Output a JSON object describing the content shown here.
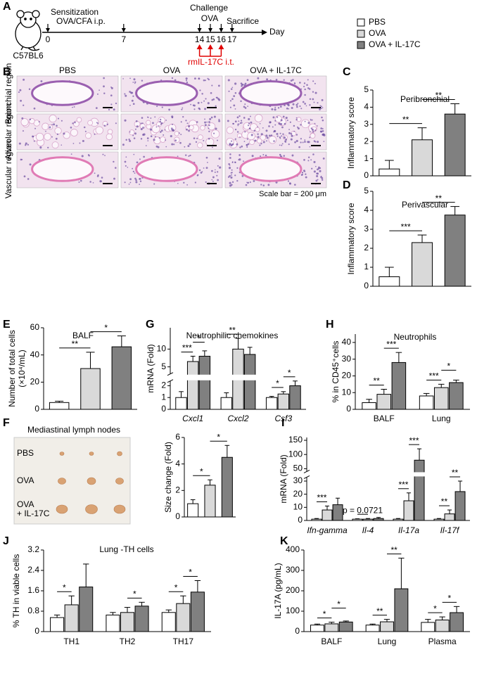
{
  "panel_A": {
    "label": "A",
    "strain": "C57BL6",
    "sensitization": "Sensitization",
    "sensitization_route": "OVA/CFA i.p.",
    "challenge": "Challenge",
    "challenge_agent": "OVA",
    "sacrifice": "Sacrifice",
    "axis_label": "Day",
    "days": [
      0,
      7,
      14,
      15,
      16,
      17
    ],
    "treatment": "rmIL-17C i.t."
  },
  "legend": {
    "items": [
      {
        "name": "PBS",
        "color": "#ffffff"
      },
      {
        "name": "OVA",
        "color": "#d9d9d9"
      },
      {
        "name": "OVA + IL-17C",
        "color": "#808080"
      }
    ]
  },
  "panel_B": {
    "label": "B",
    "columns": [
      "PBS",
      "OVA",
      "OVA + IL-17C"
    ],
    "rows": [
      "Bronchial region",
      "Alveolar region",
      "Vascular region"
    ],
    "scale_note": "Scale bar = 200 μm"
  },
  "panel_F_photo": {
    "label": "F",
    "title": "Mediastinal lymph nodes",
    "rows": [
      [
        "PBS"
      ],
      [
        "OVA"
      ],
      [
        "OVA",
        "+ IL-17C"
      ]
    ]
  },
  "chart_data": [
    {
      "panel": "C",
      "type": "bar",
      "title": "Peribronchial",
      "ylabel": "Inflammatory score",
      "values": [
        0.4,
        2.1,
        3.6
      ],
      "errors": [
        0.5,
        0.7,
        0.6
      ],
      "ylim": [
        0,
        5
      ],
      "yticks": [
        0,
        1,
        2,
        3,
        4,
        5
      ],
      "comparisons": [
        {
          "pair": [
            0,
            1
          ],
          "label": "**"
        },
        {
          "pair": [
            1,
            2
          ],
          "label": "**"
        }
      ]
    },
    {
      "panel": "D",
      "type": "bar",
      "title": "Perivascular",
      "ylabel": "Inflammatory score",
      "values": [
        0.5,
        2.3,
        3.75
      ],
      "errors": [
        0.5,
        0.4,
        0.45
      ],
      "ylim": [
        0,
        5
      ],
      "yticks": [
        0,
        1,
        2,
        3,
        4,
        5
      ],
      "comparisons": [
        {
          "pair": [
            0,
            1
          ],
          "label": "***"
        },
        {
          "pair": [
            1,
            2
          ],
          "label": "**"
        }
      ]
    },
    {
      "panel": "E",
      "type": "bar",
      "title": "BALF",
      "ylabel": [
        "Number of total cells",
        "(×10⁴/mL)"
      ],
      "values": [
        5,
        30,
        46
      ],
      "errors": [
        1,
        12,
        8
      ],
      "ylim": [
        0,
        60
      ],
      "yticks": [
        0,
        20,
        40,
        60
      ],
      "comparisons": [
        {
          "pair": [
            0,
            1
          ],
          "label": "**"
        },
        {
          "pair": [
            1,
            2
          ],
          "label": "*"
        }
      ]
    },
    {
      "type": "bar",
      "ylabel": "Size change (Fold)",
      "values": [
        1.0,
        2.4,
        4.5
      ],
      "errors": [
        0.3,
        0.4,
        0.9
      ],
      "ylim": [
        0,
        6
      ],
      "yticks": [
        0,
        2,
        4,
        6
      ],
      "comparisons": [
        {
          "pair": [
            0,
            1
          ],
          "label": "*"
        },
        {
          "pair": [
            1,
            2
          ],
          "label": "*"
        }
      ]
    },
    {
      "panel": "G",
      "type": "grouped_bar",
      "title": "Neutrophilic chemokines",
      "ylabel": "mRNA  (Fold)",
      "categories": [
        "Cxcl1",
        "Cxcl2",
        "Csf3"
      ],
      "category_style": "italic",
      "series": [
        {
          "values": [
            1.0,
            1.0,
            1.0
          ],
          "errors": [
            0.5,
            0.4,
            0.1
          ]
        },
        {
          "values": [
            6.5,
            10.0,
            1.3
          ],
          "errors": [
            1.5,
            3,
            0.2
          ]
        },
        {
          "values": [
            8.0,
            8.5,
            2.0
          ],
          "errors": [
            1.5,
            2,
            0.4
          ]
        }
      ],
      "ylim": [
        0,
        16
      ],
      "ybreak": [
        2.4,
        3
      ],
      "yticks": [
        0,
        1,
        2,
        5,
        10
      ],
      "comparisons": [
        {
          "category": 0,
          "pair": [
            0,
            1
          ],
          "label": "***"
        },
        {
          "category": 0,
          "pair": [
            1,
            2
          ],
          "label": "*"
        },
        {
          "category": 1,
          "pair": [
            0,
            1
          ],
          "label": "**"
        },
        {
          "category": 2,
          "pair": [
            0,
            1
          ],
          "label": "*"
        },
        {
          "category": 2,
          "pair": [
            1,
            2
          ],
          "label": "*"
        }
      ]
    },
    {
      "panel": "H",
      "type": "grouped_bar",
      "title": "Neutrophils",
      "ylabel": "% in CD45⁺cells",
      "categories": [
        "BALF",
        "Lung"
      ],
      "series": [
        {
          "values": [
            4,
            8
          ],
          "errors": [
            2,
            1.5
          ]
        },
        {
          "values": [
            9,
            13
          ],
          "errors": [
            3,
            2
          ]
        },
        {
          "values": [
            28,
            16
          ],
          "errors": [
            6,
            1.5
          ]
        }
      ],
      "ylim": [
        0,
        45
      ],
      "yticks": [
        0,
        10,
        20,
        30,
        40
      ],
      "comparisons": [
        {
          "category": 0,
          "pair": [
            0,
            1
          ],
          "label": "**"
        },
        {
          "category": 0,
          "pair": [
            1,
            2
          ],
          "label": "***"
        },
        {
          "category": 1,
          "pair": [
            0,
            1
          ],
          "label": "***"
        },
        {
          "category": 1,
          "pair": [
            1,
            2
          ],
          "label": "*"
        }
      ]
    },
    {
      "panel": "I",
      "type": "grouped_bar",
      "ylabel": "mRNA  (Fold)",
      "categories": [
        "Ifn-gamma",
        "Il-4",
        "Il-17a",
        "Il-17f"
      ],
      "category_style": "italic",
      "series": [
        {
          "values": [
            1,
            1,
            1,
            1
          ],
          "errors": [
            0.5,
            0.3,
            0.5,
            0.5
          ]
        },
        {
          "values": [
            8,
            1,
            15,
            5
          ],
          "errors": [
            3,
            0.5,
            6,
            3
          ]
        },
        {
          "values": [
            12,
            1.5,
            80,
            22
          ],
          "errors": [
            5,
            0.8,
            40,
            8
          ]
        }
      ],
      "ylim": [
        0,
        160
      ],
      "ybreak": [
        33,
        40
      ],
      "yticks": [
        0,
        10,
        20,
        30,
        50,
        100,
        150
      ],
      "comparisons": [
        {
          "category": 0,
          "pair": [
            0,
            1
          ],
          "label": "***"
        },
        {
          "category": 1,
          "pair": [
            0,
            1
          ],
          "label": "p = 0.0721"
        },
        {
          "category": 2,
          "pair": [
            0,
            1
          ],
          "label": "***"
        },
        {
          "category": 2,
          "pair": [
            1,
            2
          ],
          "label": "***"
        },
        {
          "category": 3,
          "pair": [
            0,
            1
          ],
          "label": "**"
        },
        {
          "category": 3,
          "pair": [
            1,
            2
          ],
          "label": "**"
        }
      ]
    },
    {
      "panel": "J",
      "type": "grouped_bar",
      "title": "Lung -TH cells",
      "ylabel": "% TH in viable cells",
      "categories": [
        "TH1",
        "TH2",
        "TH17"
      ],
      "series": [
        {
          "values": [
            0.55,
            0.65,
            0.75
          ],
          "errors": [
            0.1,
            0.1,
            0.1
          ]
        },
        {
          "values": [
            1.05,
            0.75,
            1.1
          ],
          "errors": [
            0.35,
            0.2,
            0.3
          ]
        },
        {
          "values": [
            1.75,
            1.0,
            1.55
          ],
          "errors": [
            0.9,
            0.15,
            0.45
          ]
        }
      ],
      "ylim": [
        0,
        3.2
      ],
      "yticks": [
        0,
        0.8,
        1.6,
        2.4,
        3.2
      ],
      "comparisons": [
        {
          "category": 0,
          "pair": [
            0,
            1
          ],
          "label": "*"
        },
        {
          "category": 1,
          "pair": [
            1,
            2
          ],
          "label": "*"
        },
        {
          "category": 2,
          "pair": [
            0,
            1
          ],
          "label": "*"
        },
        {
          "category": 2,
          "pair": [
            1,
            2
          ],
          "label": "*"
        }
      ]
    },
    {
      "panel": "K",
      "type": "grouped_bar",
      "ylabel": "IL-17A (pg/mL)",
      "categories": [
        "BALF",
        "Lung",
        "Plasma"
      ],
      "series": [
        {
          "values": [
            32,
            32,
            45
          ],
          "errors": [
            5,
            5,
            15
          ]
        },
        {
          "values": [
            38,
            48,
            57
          ],
          "errors": [
            8,
            12,
            15
          ]
        },
        {
          "values": [
            47,
            210,
            93
          ],
          "errors": [
            5,
            150,
            30
          ]
        }
      ],
      "ylim": [
        0,
        400
      ],
      "yticks": [
        0,
        100,
        200,
        300,
        400
      ],
      "comparisons": [
        {
          "category": 0,
          "pair": [
            0,
            1
          ],
          "label": "*"
        },
        {
          "category": 0,
          "pair": [
            1,
            2
          ],
          "label": "*"
        },
        {
          "category": 1,
          "pair": [
            0,
            1
          ],
          "label": "**"
        },
        {
          "category": 1,
          "pair": [
            1,
            2
          ],
          "label": "**"
        },
        {
          "category": 2,
          "pair": [
            0,
            1
          ],
          "label": "*"
        },
        {
          "category": 2,
          "pair": [
            1,
            2
          ],
          "label": "*"
        }
      ]
    }
  ]
}
